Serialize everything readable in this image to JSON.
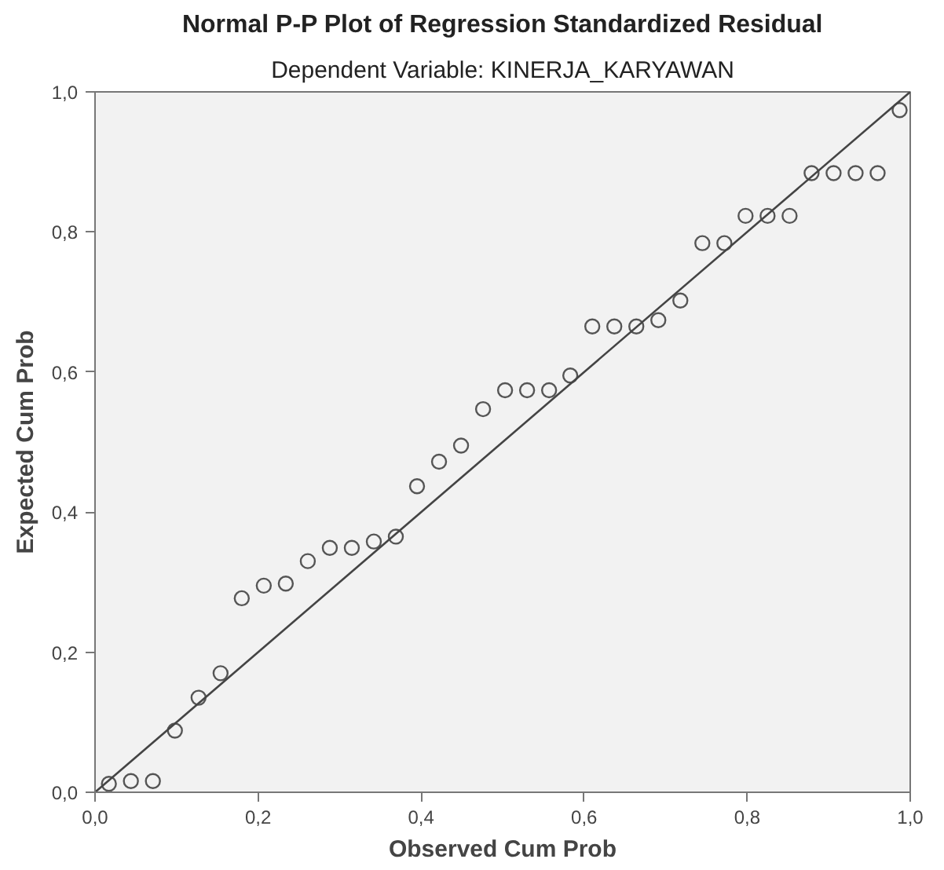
{
  "chart_data": {
    "type": "scatter",
    "title": "Normal P-P Plot of Regression Standardized Residual",
    "subtitle": "Dependent Variable: KINERJA_KARYAWAN",
    "xlabel": "Observed Cum Prob",
    "ylabel": "Expected Cum Prob",
    "xlim": [
      0,
      1
    ],
    "ylim": [
      0,
      1
    ],
    "xticks": [
      {
        "value": 0,
        "label": "0,0"
      },
      {
        "value": 0.2,
        "label": "0,2"
      },
      {
        "value": 0.4,
        "label": "0,4"
      },
      {
        "value": 0.6,
        "label": "0,6"
      },
      {
        "value": 0.8,
        "label": "0,8"
      },
      {
        "value": 1,
        "label": "1,0"
      }
    ],
    "yticks": [
      {
        "value": 0,
        "label": "0,0"
      },
      {
        "value": 0.2,
        "label": "0,2"
      },
      {
        "value": 0.4,
        "label": "0,4"
      },
      {
        "value": 0.6,
        "label": "0,6"
      },
      {
        "value": 0.8,
        "label": "0,8"
      },
      {
        "value": 1,
        "label": "1,0"
      }
    ],
    "grid": false,
    "series": [
      {
        "marker": "circle",
        "color": "#555555",
        "x": [
          0.017,
          0.044,
          0.071,
          0.098,
          0.127,
          0.154,
          0.18,
          0.207,
          0.234,
          0.261,
          0.288,
          0.315,
          0.342,
          0.369,
          0.395,
          0.422,
          0.449,
          0.476,
          0.503,
          0.53,
          0.557,
          0.583,
          0.61,
          0.637,
          0.664,
          0.691,
          0.718,
          0.745,
          0.772,
          0.798,
          0.825,
          0.852,
          0.879,
          0.906,
          0.933,
          0.96,
          0.987
        ],
        "values": [
          0.012,
          0.016,
          0.016,
          0.088,
          0.135,
          0.17,
          0.277,
          0.295,
          0.298,
          0.33,
          0.349,
          0.349,
          0.358,
          0.365,
          0.437,
          0.472,
          0.495,
          0.547,
          0.574,
          0.574,
          0.574,
          0.595,
          0.665,
          0.665,
          0.665,
          0.674,
          0.702,
          0.784,
          0.784,
          0.823,
          0.823,
          0.823,
          0.884,
          0.884,
          0.884,
          0.884,
          0.974
        ]
      },
      {
        "type": "line",
        "color": "#444444",
        "x": [
          0,
          1
        ],
        "values": [
          0,
          1
        ]
      }
    ]
  }
}
